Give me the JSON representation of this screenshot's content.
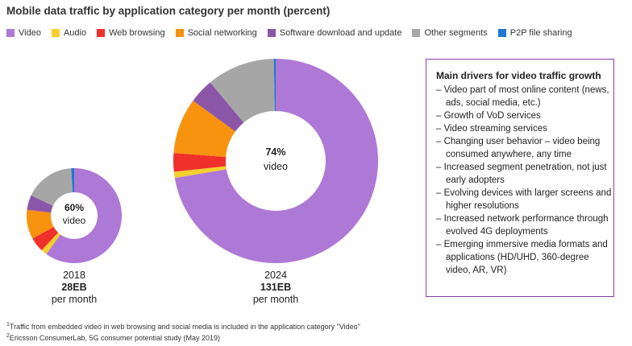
{
  "title": "Mobile data traffic by application category per month (percent)",
  "legend": [
    {
      "label": "Video",
      "color": "#ae78d6"
    },
    {
      "label": "Audio",
      "color": "#f5cf2e"
    },
    {
      "label": "Web browsing",
      "color": "#f0302b"
    },
    {
      "label": "Social networking",
      "color": "#f7930f"
    },
    {
      "label": "Software download and update",
      "color": "#8c56a8"
    },
    {
      "label": "Other segments",
      "color": "#a6a6a6"
    },
    {
      "label": "P2P file sharing",
      "color": "#1f77d4"
    }
  ],
  "chart_data": {
    "type": "pie",
    "title": "Mobile data traffic by application category per month (percent)",
    "categories": [
      "Video",
      "Audio",
      "Web browsing",
      "Social networking",
      "Software download and update",
      "Other segments",
      "P2P file sharing"
    ],
    "charts": [
      {
        "year": "2018",
        "total": "28EB",
        "unit": "per month",
        "center_value": "60%",
        "center_label": "video",
        "values": [
          60,
          2,
          5,
          10,
          5,
          17,
          1
        ]
      },
      {
        "year": "2024",
        "total": "131EB",
        "unit": "per month",
        "center_value": "74%",
        "center_label": "video",
        "values": [
          74,
          1,
          3,
          9,
          4,
          11,
          0.3
        ]
      }
    ]
  },
  "drivers": {
    "heading": "Main drivers for video traffic growth",
    "items": [
      "Video part of most online content (news, ads, social media, etc.)",
      "Growth of VoD services",
      "Video streaming services",
      "Changing user behavior – video being consumed anywhere, any time",
      "Increased segment penetration, not just early adopters",
      "Evolving devices with larger screens and higher resolutions",
      "Increased network performance through evolved 4G deployments",
      "Emerging immersive media formats and applications (HD/UHD, 360-degree video, AR, VR)"
    ]
  },
  "footnotes": [
    {
      "mark": "1",
      "text": "Traffic from embedded video in web browsing and social media is included in the application category \"Video\""
    },
    {
      "mark": "2",
      "text": "Ericsson ConsumerLab, 5G consumer potential study (May 2019)"
    }
  ]
}
